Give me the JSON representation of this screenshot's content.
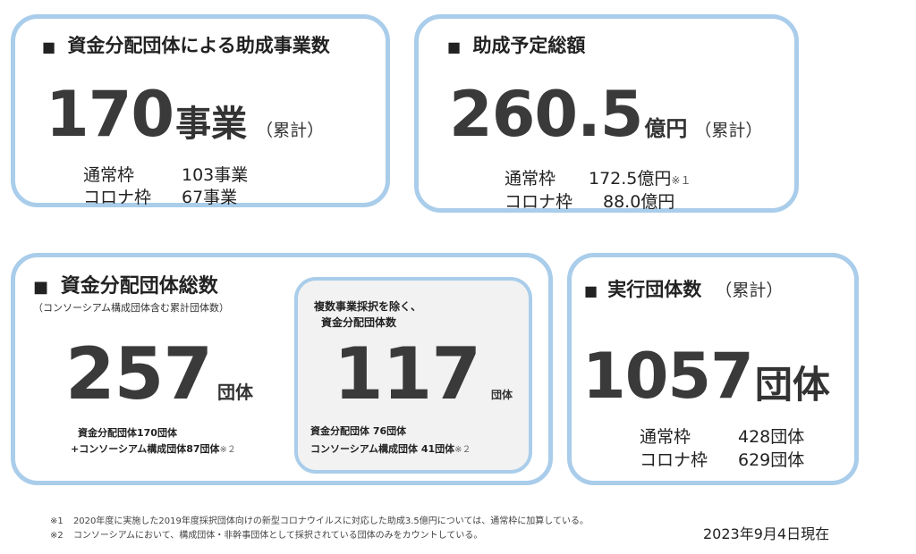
{
  "card1": {
    "heading": "資金分配団体による助成事業数",
    "value": "170",
    "unit": "事業",
    "suffix": "（累計）",
    "rows": [
      {
        "label": "通常枠",
        "value": "103事業"
      },
      {
        "label": "コロナ枠",
        "value": "67事業"
      }
    ]
  },
  "card2": {
    "heading": "助成予定総額",
    "value": "260.5",
    "unit": "億円",
    "suffix": "（累計）",
    "rows": [
      {
        "label": "通常枠",
        "value": "172.5億円",
        "mark": "※１"
      },
      {
        "label": "コロナ枠",
        "value": "88.0億円"
      }
    ]
  },
  "card3": {
    "heading": "資金分配団体総数",
    "subheading": "（コンソーシアム構成団体含む累計団体数）",
    "value": "257",
    "unit": "団体",
    "line1": "資金分配団体170団体",
    "line2": "+コンソーシアム構成団体87団体",
    "line2_mark": "※２"
  },
  "card3_inner": {
    "heading_line1": "複数事業採択を除く、",
    "heading_line2": "資金分配団体数",
    "value": "117",
    "unit": "団体",
    "line1": "資金分配団体 76団体",
    "line2": "コンソーシアム構成団体 41団体",
    "line2_mark": "※２"
  },
  "card4": {
    "heading": "実行団体数",
    "suffix": "（累計）",
    "value": "1057",
    "unit": "団体",
    "rows": [
      {
        "label": "通常枠",
        "value": "428団体"
      },
      {
        "label": "コロナ枠",
        "value": "629団体"
      }
    ]
  },
  "footnotes": [
    {
      "mark": "※1",
      "text": "2020年度に実施した2019年度採択団体向けの新型コロナウイルスに対応した助成3.5億円については、通常枠に加算している。"
    },
    {
      "mark": "※2",
      "text": "コンソーシアムにおいて、構成団体・非幹事団体として採択されている団体のみをカウントしている。"
    }
  ],
  "as_of": "2023年9月4日現在",
  "colors": {
    "border": "#a9cdea",
    "inner_bg": "#f2f2f2",
    "number": "#3a3a3a"
  }
}
